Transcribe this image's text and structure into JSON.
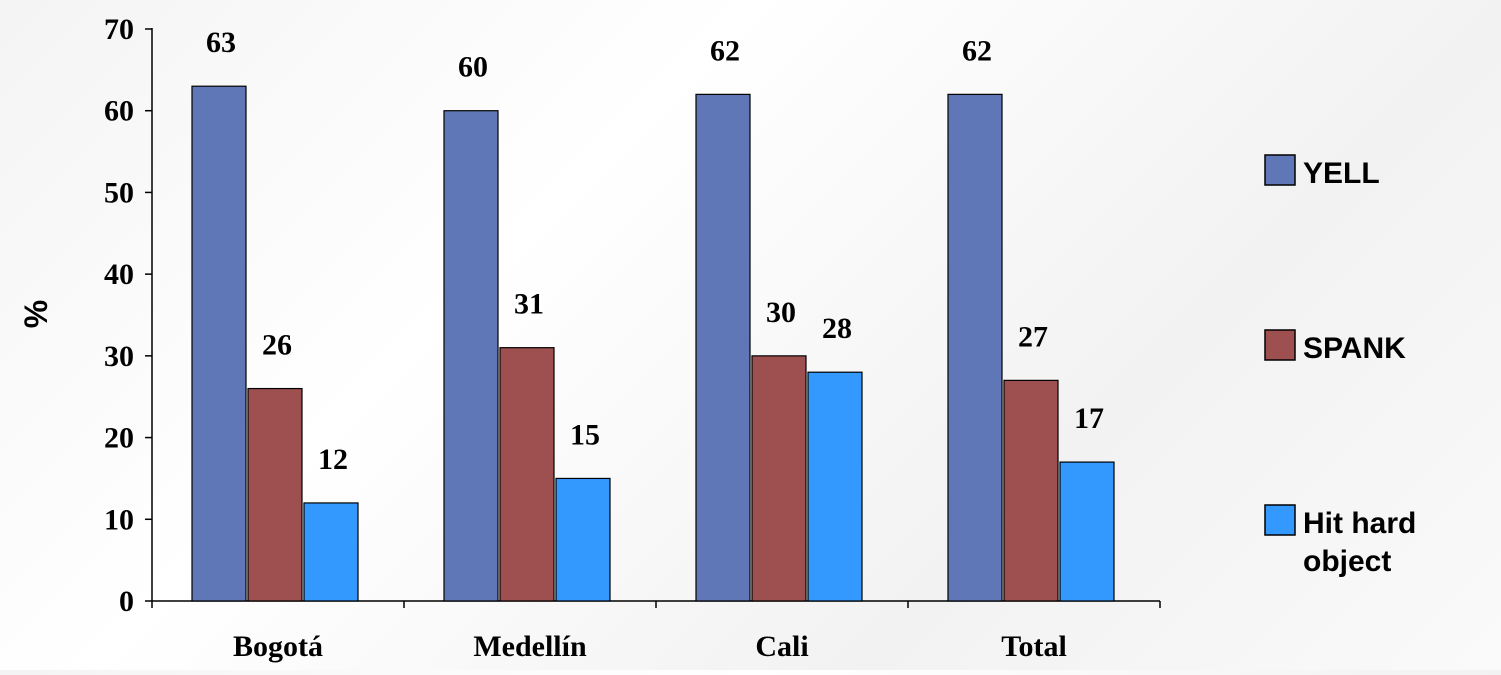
{
  "chart_data": {
    "type": "bar",
    "categories": [
      "Bogotá",
      "Medellín",
      "Cali",
      "Total"
    ],
    "series": [
      {
        "name": "YELL",
        "values": [
          63,
          60,
          62,
          62
        ],
        "color": "#5f77b6"
      },
      {
        "name": "SPANK",
        "values": [
          26,
          31,
          30,
          27
        ],
        "color": "#9e4f4f"
      },
      {
        "name": "Hit hard object",
        "values": [
          12,
          15,
          28,
          17
        ],
        "color": "#3399ff"
      }
    ],
    "title": "",
    "xlabel": "",
    "ylabel": "%",
    "ylim": [
      0,
      70
    ],
    "yticks": [
      0,
      10,
      20,
      30,
      40,
      50,
      60,
      70
    ],
    "grid": false,
    "legend_position": "right"
  }
}
